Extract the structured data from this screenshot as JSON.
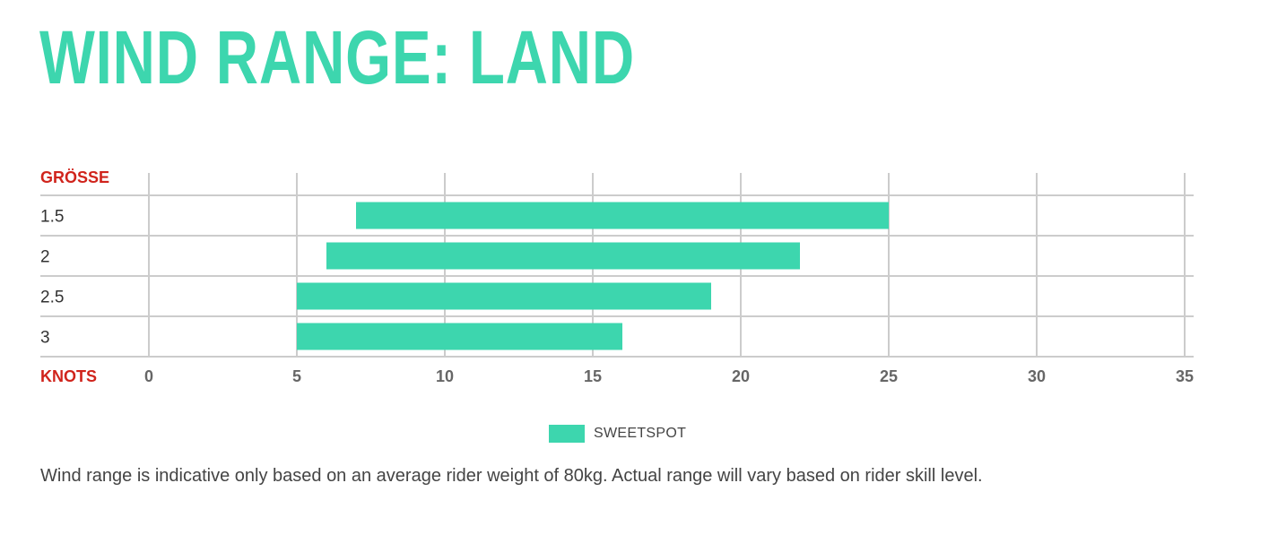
{
  "title": "WIND RANGE: LAND",
  "chart_data": {
    "type": "bar",
    "orientation": "horizontal",
    "row_header": "GRÖSSE",
    "xlabel": "KNOTS",
    "categories": [
      "1.5",
      "2",
      "2.5",
      "3"
    ],
    "series": [
      {
        "name": "SWEETSPOT",
        "ranges": [
          [
            7,
            25
          ],
          [
            6,
            22
          ],
          [
            5,
            19
          ],
          [
            5,
            16
          ]
        ]
      }
    ],
    "xlim": [
      0,
      35
    ],
    "xticks": [
      0,
      5,
      10,
      15,
      20,
      25,
      30,
      35
    ],
    "grid": true,
    "legend_position": "bottom-center",
    "colors": {
      "bar": "#3dd6ae",
      "header": "#d0241c",
      "grid": "#cccccc"
    }
  },
  "legend": {
    "label": "SWEETSPOT"
  },
  "footnote": "Wind range is indicative only based on an average rider weight of 80kg. Actual range will vary based on rider skill level."
}
